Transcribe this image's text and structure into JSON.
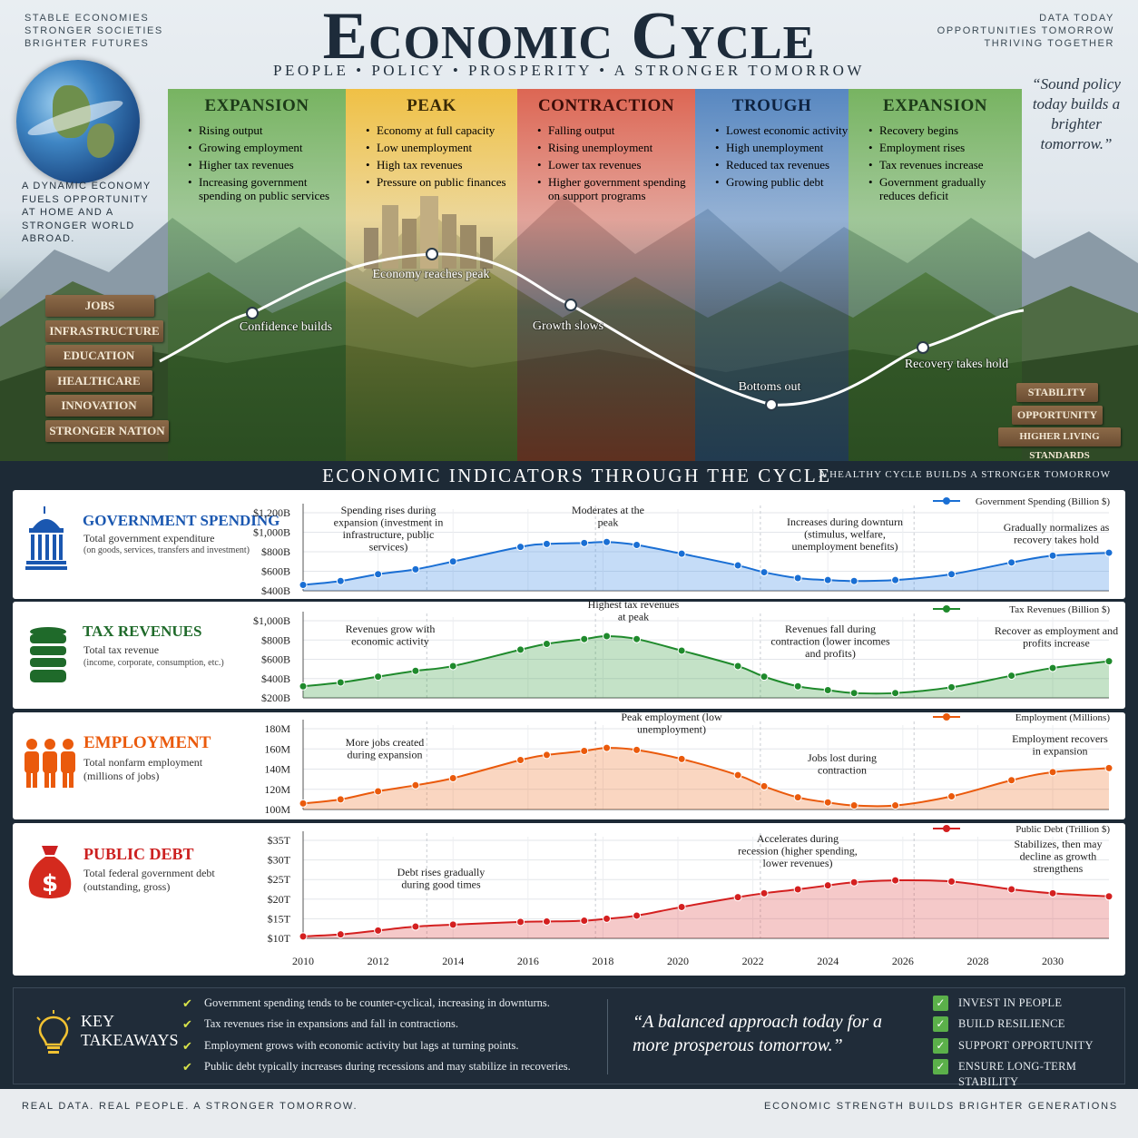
{
  "header": {
    "title": "Economic Cycle",
    "subtitle": "PEOPLE • POLICY • PROSPERITY • A STRONGER TOMORROW",
    "corner_left": [
      "STABLE ECONOMIES",
      "STRONGER SOCIETIES",
      "BRIGHTER FUTURES"
    ],
    "corner_right": [
      "DATA TODAY",
      "OPPORTUNITIES TOMORROW",
      "THRIVING TOGETHER"
    ],
    "left_blurb": [
      "A DYNAMIC ECONOMY",
      "FUELS OPPORTUNITY",
      "AT HOME AND A",
      "STRONGER WORLD",
      "ABROAD."
    ],
    "quote": "“Sound policy today builds a brighter tomorrow.”"
  },
  "phases": [
    {
      "title": "EXPANSION",
      "bullets": [
        "Rising output",
        "Growing employment",
        "Higher tax revenues",
        "Increasing government spending on public services"
      ],
      "color": "#5e9f47"
    },
    {
      "title": "PEAK",
      "bullets": [
        "Economy at full capacity",
        "Low unemployment",
        "High tax revenues",
        "Pressure on public finances"
      ],
      "color": "#e4b235"
    },
    {
      "title": "CONTRACTION",
      "bullets": [
        "Falling output",
        "Rising unemployment",
        "Lower tax revenues",
        "Higher government spending on support programs"
      ],
      "color": "#d1513f"
    },
    {
      "title": "TROUGH",
      "bullets": [
        "Lowest economic activity",
        "High unemployment",
        "Reduced tax revenues",
        "Growing public debt"
      ],
      "color": "#3f6fa5"
    },
    {
      "title": "EXPANSION",
      "bullets": [
        "Recovery begins",
        "Employment rises",
        "Tax revenues increase",
        "Government gradually reduces deficit"
      ],
      "color": "#5e9f47"
    }
  ],
  "cycle_labels": [
    "Confidence builds",
    "Economy reaches peak",
    "Growth slows",
    "Bottoms out",
    "Recovery takes hold"
  ],
  "signs_left": [
    "JOBS",
    "INFRASTRUCTURE",
    "EDUCATION",
    "HEALTHCARE",
    "INNOVATION",
    "STRONGER NATION"
  ],
  "signs_right": [
    "STABILITY",
    "OPPORTUNITY",
    "HIGHER LIVING STANDARDS"
  ],
  "band": {
    "title": "ECONOMIC INDICATORS THROUGH THE CYCLE",
    "right": "A HEALTHY CYCLE BUILDS A STRONGER TOMORROW"
  },
  "colors": {
    "spending": "#1a6fd4",
    "tax": "#1f8a2c",
    "employment": "#ea5a0c",
    "debt": "#d42020"
  },
  "panels": [
    {
      "title": "GOVERNMENT SPENDING",
      "sub": "Total government expenditure",
      "sub2": "(on goods, services, transfers and investment)"
    },
    {
      "title": "TAX REVENUES",
      "sub": "Total tax revenue",
      "sub2": "(income, corporate, consumption, etc.)"
    },
    {
      "title": "EMPLOYMENT",
      "sub": "Total nonfarm employment",
      "sub2": "(millions of jobs)"
    },
    {
      "title": "PUBLIC DEBT",
      "sub": "Total federal government debt",
      "sub2": "(outstanding, gross)"
    }
  ],
  "chart_data": [
    {
      "type": "area",
      "series": [
        {
          "name": "Government Spending (Billion $)"
        }
      ],
      "x": [
        2010,
        2011,
        2012,
        2013,
        2014,
        2015.8,
        2016.5,
        2017.5,
        2018.1,
        2018.9,
        2020.1,
        2021.6,
        2022.3,
        2023.2,
        2024,
        2024.7,
        2025.8,
        2027.3,
        2028.9,
        2030,
        2031.5
      ],
      "y": [
        460,
        500,
        570,
        620,
        700,
        850,
        880,
        890,
        900,
        870,
        780,
        660,
        590,
        530,
        510,
        500,
        510,
        570,
        690,
        760,
        790
      ],
      "ylim": [
        400,
        1200
      ],
      "yticks": [
        "$400B",
        "$600B",
        "$800B",
        "$1,000B",
        "$1,200B"
      ],
      "annotations": [
        "Spending rises during expansion (investment in infrastructure, public services)",
        "Moderates at the peak",
        "Increases during downturn (stimulus, welfare, unemployment benefits)",
        "Gradually normalizes as recovery takes hold"
      ]
    },
    {
      "type": "area",
      "series": [
        {
          "name": "Tax Revenues (Billion $)"
        }
      ],
      "x": [
        2010,
        2011,
        2012,
        2013,
        2014,
        2015.8,
        2016.5,
        2017.5,
        2018.1,
        2018.9,
        2020.1,
        2021.6,
        2022.3,
        2023.2,
        2024,
        2024.7,
        2025.8,
        2027.3,
        2028.9,
        2030,
        2031.5
      ],
      "y": [
        320,
        360,
        420,
        480,
        530,
        700,
        760,
        810,
        840,
        810,
        690,
        530,
        420,
        320,
        280,
        250,
        250,
        310,
        430,
        510,
        580
      ],
      "ylim": [
        200,
        1000
      ],
      "yticks": [
        "$200B",
        "$400B",
        "$600B",
        "$800B",
        "$1,000B"
      ],
      "annotations": [
        "Revenues grow with economic activity",
        "Highest tax revenues at peak",
        "Revenues fall during contraction (lower incomes and profits)",
        "Recover as employment and profits increase"
      ]
    },
    {
      "type": "area",
      "series": [
        {
          "name": "Employment (Millions)"
        }
      ],
      "x": [
        2010,
        2011,
        2012,
        2013,
        2014,
        2015.8,
        2016.5,
        2017.5,
        2018.1,
        2018.9,
        2020.1,
        2021.6,
        2022.3,
        2023.2,
        2024,
        2024.7,
        2025.8,
        2027.3,
        2028.9,
        2030,
        2031.5
      ],
      "y": [
        106,
        110,
        118,
        124,
        131,
        149,
        154,
        158,
        161,
        159,
        150,
        134,
        123,
        112,
        107,
        104,
        104,
        113,
        129,
        137,
        141
      ],
      "ylim": [
        100,
        180
      ],
      "yticks": [
        "100M",
        "120M",
        "140M",
        "160M",
        "180M"
      ],
      "annotations": [
        "More jobs created during expansion",
        "Peak employment (low unemployment)",
        "Jobs lost during contraction",
        "Employment recovers in expansion"
      ]
    },
    {
      "type": "area",
      "series": [
        {
          "name": "Public Debt (Trillion $)"
        }
      ],
      "x": [
        2010,
        2011,
        2012,
        2013,
        2014,
        2015.8,
        2016.5,
        2017.5,
        2018.1,
        2018.9,
        2020.1,
        2021.6,
        2022.3,
        2023.2,
        2024,
        2024.7,
        2025.8,
        2027.3,
        2028.9,
        2030,
        2031.5
      ],
      "y": [
        10.5,
        11,
        12,
        13,
        13.5,
        14.2,
        14.3,
        14.5,
        15,
        15.8,
        18,
        20.5,
        21.5,
        22.5,
        23.5,
        24.3,
        24.8,
        24.5,
        22.5,
        21.5,
        20.7
      ],
      "ylim": [
        10,
        35
      ],
      "yticks": [
        "$10T",
        "$15T",
        "$20T",
        "$25T",
        "$30T",
        "$35T"
      ],
      "annotations": [
        "Debt rises gradually during good times",
        "Accelerates during recession (higher spending, lower revenues)",
        "Stabilizes, then may decline as growth strengthens"
      ]
    }
  ],
  "x_axis": {
    "labels": [
      "2010",
      "2012",
      "2014",
      "2016",
      "2018",
      "2020",
      "2022",
      "2024",
      "2026",
      "2028",
      "2030"
    ]
  },
  "takeaways": {
    "label": [
      "KEY",
      "TAKEAWAYS"
    ],
    "items": [
      "Government spending tends to be counter-cyclical, increasing in downturns.",
      "Tax revenues rise in expansions and fall in contractions.",
      "Employment grows with economic activity but lags at turning points.",
      "Public debt typically increases during recessions and may stabilize in recoveries."
    ],
    "quote": "“A balanced approach today for a more prosperous tomorrow.”",
    "checks": [
      "INVEST IN PEOPLE",
      "BUILD RESILIENCE",
      "SUPPORT OPPORTUNITY",
      "ENSURE LONG-TERM STABILITY"
    ]
  },
  "footer": {
    "left": "REAL DATA. REAL PEOPLE. A STRONGER TOMORROW.",
    "right": "ECONOMIC STRENGTH BUILDS BRIGHTER GENERATIONS"
  }
}
